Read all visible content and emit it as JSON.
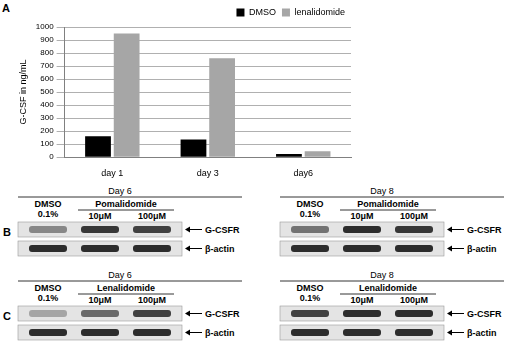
{
  "chart_data": {
    "type": "bar",
    "panel": "A",
    "y_label": "G-CSF in ng/mL",
    "categories": [
      "day 1",
      "day 3",
      "day6"
    ],
    "series": [
      {
        "name": "DMSO",
        "color": "#000000",
        "values": [
          160,
          135,
          25
        ]
      },
      {
        "name": "lenalidomide",
        "color": "#a6a6a6",
        "values": [
          950,
          760,
          45
        ]
      }
    ],
    "ylim": [
      0,
      1000
    ],
    "yticks": [
      0,
      100,
      200,
      300,
      400,
      500,
      600,
      700,
      800,
      900,
      1000
    ],
    "grid": true,
    "legend": "top-right"
  },
  "blot_panels": [
    {
      "panel": "B",
      "blots": [
        {
          "title": "Day 6",
          "control": "DMSO",
          "control_dose": "0.1%",
          "drug": "Pomalidomide",
          "doses": [
            "10μM",
            "100μM"
          ],
          "rows": [
            {
              "label": "G-CSFR",
              "intensity": [
                0.45,
                0.85,
                0.8
              ]
            },
            {
              "label": "β-actin",
              "intensity": [
                0.9,
                0.9,
                0.9
              ]
            }
          ]
        },
        {
          "title": "Day 8",
          "control": "DMSO",
          "control_dose": "0.1%",
          "drug": "Pomalidomide",
          "doses": [
            "10μM",
            "100μM"
          ],
          "rows": [
            {
              "label": "G-CSFR",
              "intensity": [
                0.55,
                0.9,
                0.85
              ]
            },
            {
              "label": "β-actin",
              "intensity": [
                0.9,
                0.9,
                0.9
              ]
            }
          ]
        }
      ]
    },
    {
      "panel": "C",
      "blots": [
        {
          "title": "Day 6",
          "control": "DMSO",
          "control_dose": "0.1%",
          "drug": "Lenalidomide",
          "doses": [
            "10μM",
            "100μM"
          ],
          "rows": [
            {
              "label": "G-CSFR",
              "intensity": [
                0.3,
                0.6,
                0.8
              ]
            },
            {
              "label": "β-actin",
              "intensity": [
                0.9,
                0.9,
                0.9
              ]
            }
          ]
        },
        {
          "title": "Day 8",
          "control": "DMSO",
          "control_dose": "0.1%",
          "drug": "Lenalidomide",
          "doses": [
            "10μM",
            "100μM"
          ],
          "rows": [
            {
              "label": "G-CSFR",
              "intensity": [
                0.8,
                0.9,
                0.9
              ]
            },
            {
              "label": "β-actin",
              "intensity": [
                0.9,
                0.9,
                0.9
              ]
            }
          ]
        }
      ]
    }
  ]
}
